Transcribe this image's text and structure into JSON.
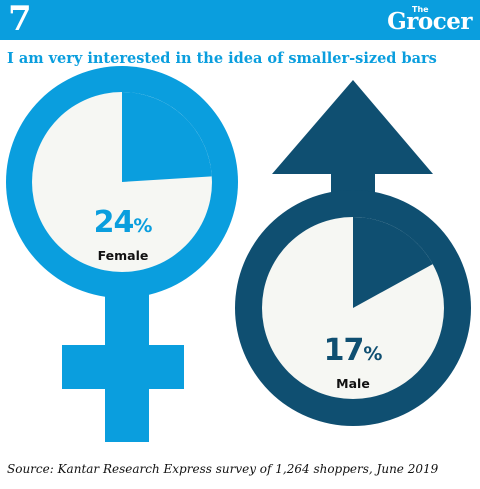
{
  "header": {
    "logo_mark": "7",
    "brand_prefix": "The",
    "brand_name": "Grocer"
  },
  "title": "I am very interested in the idea of smaller-sized bars",
  "source": "Source: Kantar Research Express survey of 1,264 shoppers, June 2019",
  "colors": {
    "banner": "#0a9ede",
    "female": "#0a9ede",
    "male": "#0f4f71",
    "circle_fill": "#f6f7f3",
    "title": "#0a9ede",
    "text": "#111111"
  },
  "icons": [
    "female-symbol-icon",
    "male-symbol-icon"
  ],
  "chart_data": {
    "type": "pie",
    "title": "I am very interested in the idea of smaller-sized bars",
    "series": [
      {
        "name": "Female",
        "value": 24,
        "value_label": "24",
        "unit": "%"
      },
      {
        "name": "Male",
        "value": 17,
        "value_label": "17",
        "unit": "%"
      }
    ]
  }
}
